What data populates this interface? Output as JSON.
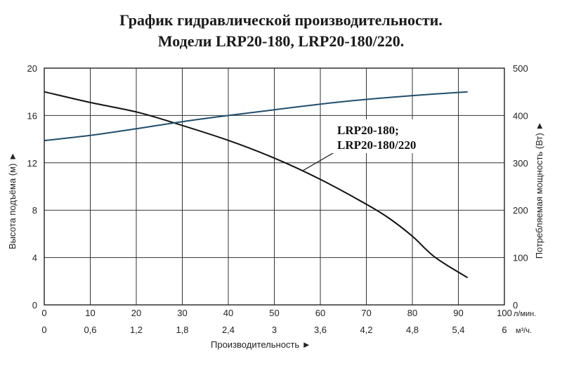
{
  "chart_data": {
    "type": "line",
    "title_lines": [
      "График гидравлической производительности.",
      "Модели LRP20-180, LRP20-180/220."
    ],
    "x_axis": {
      "range": [
        0,
        100
      ],
      "ticks": [
        "0",
        "10",
        "20",
        "30",
        "40",
        "50",
        "60",
        "70",
        "80",
        "90",
        "100"
      ],
      "unit": "л/мин.",
      "label": "Производительность ►"
    },
    "x_axis_secondary": {
      "range": [
        0,
        6
      ],
      "ticks": [
        "0",
        "0,6",
        "1,2",
        "1,8",
        "2,4",
        "3",
        "3,6",
        "4,2",
        "4,8",
        "5,4",
        "6"
      ],
      "unit": "м³/ч."
    },
    "y_axis_left": {
      "range": [
        0,
        20
      ],
      "ticks": [
        "0",
        "4",
        "8",
        "12",
        "16",
        "20"
      ],
      "label": "Высота подъёма (м) ►"
    },
    "y_axis_right": {
      "range": [
        0,
        500
      ],
      "ticks": [
        "0",
        "100",
        "200",
        "300",
        "400",
        "500"
      ],
      "label": "Потребляемая мощность (Вт) ►"
    },
    "grid": true,
    "series": [
      {
        "axis": "left",
        "color": "#111111",
        "x": [
          0,
          10,
          20,
          28,
          40,
          50,
          60,
          70,
          75,
          80,
          85,
          92
        ],
        "y": [
          18.0,
          17.1,
          16.3,
          15.4,
          13.9,
          12.4,
          10.6,
          8.5,
          7.3,
          5.8,
          4.0,
          2.3
        ]
      },
      {
        "axis": "right",
        "color": "#1f4e6e",
        "x": [
          0,
          10,
          20,
          30,
          40,
          50,
          60,
          70,
          80,
          92
        ],
        "y": [
          347,
          358,
          372,
          387,
          400,
          412,
          424,
          434,
          442,
          450
        ]
      }
    ],
    "annotation": {
      "lines": [
        "LRP20-180;",
        "LRP20-180/220"
      ],
      "points_to_x": 56,
      "points_to_y": 11.3
    }
  }
}
